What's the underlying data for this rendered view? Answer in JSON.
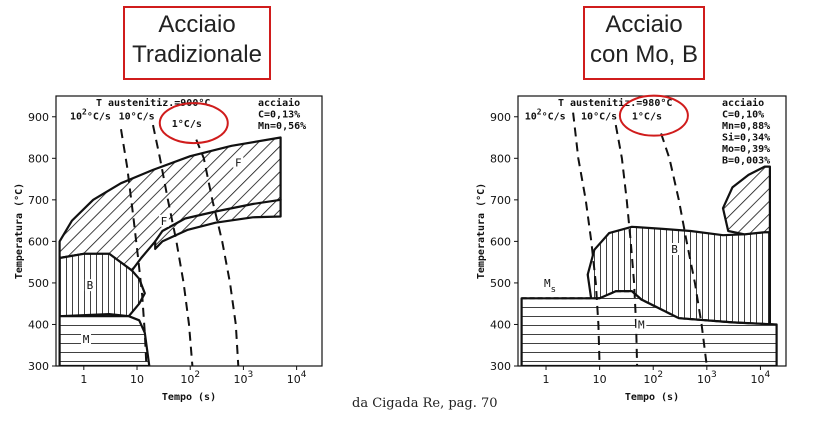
{
  "titles": {
    "left_line1": "Acciaio",
    "left_line2": "Tradizionale",
    "right_line1": "Acciaio",
    "right_line2": "con Mo, B"
  },
  "source_note": "da Cigada Re, pag. 70",
  "accent_color": "#d01c1c",
  "chart_data": [
    {
      "type": "line",
      "subtype": "CCT diagram",
      "header": "T austenitiz.=900°C",
      "composition": [
        "acciaio",
        "C=0,13%",
        "Mn=0,56%"
      ],
      "xlabel": "Tempo (s)",
      "ylabel": "Temperatura (°C)",
      "xscale": "log",
      "xlim": [
        0.3,
        30000
      ],
      "ylim": [
        300,
        950
      ],
      "x_ticks": [
        {
          "v": 1,
          "label": "1"
        },
        {
          "v": 10,
          "label": "10"
        },
        {
          "v": 100,
          "label": "10",
          "sup": "2"
        },
        {
          "v": 1000,
          "label": "10",
          "sup": "3"
        },
        {
          "v": 10000,
          "label": "10",
          "sup": "4"
        }
      ],
      "y_ticks": [
        300,
        400,
        500,
        600,
        700,
        800,
        900
      ],
      "cooling_curves": [
        {
          "label": "10",
          "label_sup": "2",
          "label_unit": "°C/s",
          "label_at": [
            0.55,
            893
          ],
          "points": [
            [
              5,
              870
            ],
            [
              6.5,
              780
            ],
            [
              8.5,
              660
            ],
            [
              10.5,
              560
            ],
            [
              12.5,
              470
            ],
            [
              14,
              380
            ],
            [
              15,
              300
            ]
          ]
        },
        {
          "label": "10°C/s",
          "label_at": [
            4.5,
            893
          ],
          "points": [
            [
              20,
              880
            ],
            [
              27,
              800
            ],
            [
              38,
              700
            ],
            [
              55,
              600
            ],
            [
              75,
              500
            ],
            [
              95,
              400
            ],
            [
              110,
              300
            ]
          ]
        },
        {
          "label": "1°C/s",
          "label_at": [
            45,
            875
          ],
          "points": [
            [
              130,
              845
            ],
            [
              180,
              800
            ],
            [
              260,
              700
            ],
            [
              400,
              600
            ],
            [
              560,
              500
            ],
            [
              720,
              400
            ],
            [
              800,
              300
            ]
          ]
        }
      ],
      "regions": [
        {
          "label": "F",
          "label_at": [
            800,
            780
          ],
          "hatch": "diagonal",
          "points": [
            [
              0.35,
              600
            ],
            [
              0.6,
              650
            ],
            [
              1.5,
              700
            ],
            [
              5,
              740
            ],
            [
              20,
              772
            ],
            [
              100,
              805
            ],
            [
              600,
              830
            ],
            [
              5000,
              850
            ],
            [
              5000,
              700
            ],
            [
              1000,
              680
            ],
            [
              300,
              660
            ],
            [
              60,
              630
            ],
            [
              22,
              600
            ],
            [
              12,
              560
            ],
            [
              8,
              530
            ],
            [
              3,
              570
            ],
            [
              1,
              570
            ],
            [
              0.35,
              560
            ]
          ]
        },
        {
          "label": "F",
          "label_at": [
            32,
            640
          ],
          "hatch": "diagonal",
          "points": [
            [
              22,
              600
            ],
            [
              30,
              625
            ],
            [
              80,
              655
            ],
            [
              300,
              672
            ],
            [
              1500,
              690
            ],
            [
              5000,
              700
            ],
            [
              5000,
              660
            ],
            [
              1500,
              658
            ],
            [
              300,
              645
            ],
            [
              90,
              628
            ],
            [
              30,
              600
            ],
            [
              22,
              582
            ]
          ]
        },
        {
          "label": "B",
          "label_at": [
            1.3,
            485
          ],
          "hatch": "vertical",
          "points": [
            [
              0.35,
              560
            ],
            [
              1,
              570
            ],
            [
              3,
              570
            ],
            [
              8,
              530
            ],
            [
              11,
              510
            ],
            [
              14,
              475
            ],
            [
              11,
              450
            ],
            [
              7,
              420
            ],
            [
              3,
              425
            ],
            [
              0.35,
              420
            ]
          ]
        },
        {
          "label": "M",
          "label_at": [
            1.1,
            355
          ],
          "hatch": "horizontal",
          "points": [
            [
              0.35,
              420
            ],
            [
              7,
              420
            ],
            [
              11,
              410
            ],
            [
              14,
              380
            ],
            [
              17,
              300
            ],
            [
              0.35,
              300
            ]
          ]
        }
      ]
    },
    {
      "type": "line",
      "subtype": "CCT diagram",
      "header": "T austenitiz.=980°C",
      "composition": [
        "acciaio",
        "C=0,10%",
        "Mn=0,88%",
        "Si=0,34%",
        "Mo=0,39%",
        "B=0,003%"
      ],
      "xlabel": "Tempo (s)",
      "ylabel": "Temperatura (°C)",
      "xscale": "log",
      "xlim": [
        0.3,
        30000
      ],
      "ylim": [
        300,
        950
      ],
      "x_ticks": [
        {
          "v": 1,
          "label": "1"
        },
        {
          "v": 10,
          "label": "10"
        },
        {
          "v": 100,
          "label": "10",
          "sup": "2"
        },
        {
          "v": 1000,
          "label": "10",
          "sup": "3"
        },
        {
          "v": 10000,
          "label": "10",
          "sup": "4"
        }
      ],
      "y_ticks": [
        300,
        400,
        500,
        600,
        700,
        800,
        900
      ],
      "ms_label": "M",
      "ms_label_sub": "s",
      "ms_line": [
        [
          0.35,
          463
        ],
        [
          10,
          463
        ],
        [
          20,
          480
        ],
        [
          40,
          480
        ],
        [
          60,
          460
        ],
        [
          300,
          415
        ],
        [
          3000,
          405
        ],
        [
          20000,
          400
        ]
      ],
      "cooling_curves": [
        {
          "label": "10",
          "label_sup": "2",
          "label_unit": "°C/s",
          "label_at": [
            0.4,
            893
          ],
          "points": [
            [
              3.2,
              910
            ],
            [
              4,
              800
            ],
            [
              5.5,
              700
            ],
            [
              7,
              600
            ],
            [
              8.5,
              500
            ],
            [
              9.5,
              400
            ],
            [
              10,
              300
            ]
          ]
        },
        {
          "label": "10°C/s",
          "label_at": [
            4.5,
            893
          ],
          "points": [
            [
              20,
              880
            ],
            [
              26,
              800
            ],
            [
              32,
              700
            ],
            [
              38,
              600
            ],
            [
              44,
              500
            ],
            [
              48,
              400
            ],
            [
              50,
              300
            ]
          ]
        },
        {
          "label": "1°C/s",
          "label_at": [
            40,
            893
          ],
          "points": [
            [
              140,
              860
            ],
            [
              200,
              800
            ],
            [
              300,
              700
            ],
            [
              420,
              600
            ],
            [
              600,
              500
            ],
            [
              800,
              400
            ],
            [
              1000,
              300
            ]
          ]
        }
      ],
      "regions": [
        {
          "label": "B",
          "label_at": [
            250,
            572
          ],
          "hatch": "vertical",
          "points": [
            [
              7,
              460
            ],
            [
              6,
              520
            ],
            [
              8,
              580
            ],
            [
              15,
              620
            ],
            [
              40,
              635
            ],
            [
              150,
              630
            ],
            [
              500,
              625
            ],
            [
              2000,
              615
            ],
            [
              5000,
              617
            ],
            [
              12000,
              622
            ],
            [
              15000,
              622
            ],
            [
              15000,
              400
            ],
            [
              3000,
              405
            ],
            [
              300,
              415
            ],
            [
              60,
              460
            ],
            [
              40,
              480
            ],
            [
              20,
              480
            ],
            [
              12,
              465
            ]
          ]
        },
        {
          "label": "",
          "hatch": "diagonal",
          "points": [
            [
              2500,
              625
            ],
            [
              2000,
              680
            ],
            [
              3000,
              730
            ],
            [
              6000,
              760
            ],
            [
              12000,
              780
            ],
            [
              15000,
              780
            ],
            [
              15000,
              622
            ],
            [
              12000,
              622
            ],
            [
              5000,
              617
            ]
          ]
        },
        {
          "label": "M",
          "label_at": [
            60,
            390
          ],
          "hatch": "horizontal",
          "points": [
            [
              0.35,
              463
            ],
            [
              10,
              463
            ],
            [
              20,
              480
            ],
            [
              40,
              480
            ],
            [
              60,
              460
            ],
            [
              300,
              415
            ],
            [
              3000,
              405
            ],
            [
              20000,
              400
            ],
            [
              20000,
              300
            ],
            [
              0.35,
              300
            ]
          ]
        }
      ]
    }
  ]
}
